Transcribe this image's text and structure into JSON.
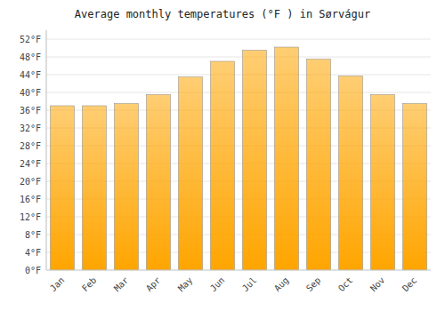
{
  "chart_data": {
    "type": "bar",
    "title": "Average monthly temperatures (°F ) in Sørvágur",
    "categories": [
      "Jan",
      "Feb",
      "Mar",
      "Apr",
      "May",
      "Jun",
      "Jul",
      "Aug",
      "Sep",
      "Oct",
      "Nov",
      "Dec"
    ],
    "values": [
      37.0,
      37.0,
      37.5,
      39.5,
      43.5,
      47.0,
      49.5,
      50.2,
      47.5,
      43.7,
      39.5,
      37.5
    ],
    "color": "#FFA500",
    "ylim": [
      0,
      54
    ],
    "yticks": [
      {
        "value": 0,
        "label": "0°F"
      },
      {
        "value": 4,
        "label": "4°F"
      },
      {
        "value": 8,
        "label": "8°F"
      },
      {
        "value": 12,
        "label": "12°F"
      },
      {
        "value": 16,
        "label": "16°F"
      },
      {
        "value": 20,
        "label": "20°F"
      },
      {
        "value": 24,
        "label": "24°F"
      },
      {
        "value": 28,
        "label": "28°F"
      },
      {
        "value": 32,
        "label": "32°F"
      },
      {
        "value": 36,
        "label": "36°F"
      },
      {
        "value": 40,
        "label": "40°F"
      },
      {
        "value": 44,
        "label": "44°F"
      },
      {
        "value": 48,
        "label": "48°F"
      },
      {
        "value": 52,
        "label": "52°F"
      }
    ],
    "grid": true
  }
}
